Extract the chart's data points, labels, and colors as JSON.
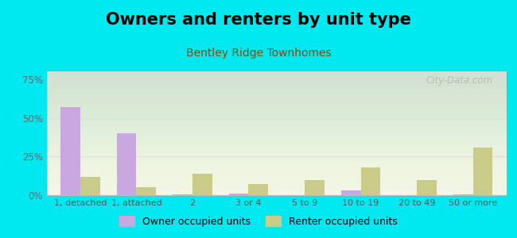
{
  "title": "Owners and renters by unit type",
  "subtitle": "Bentley Ridge Townhomes",
  "categories": [
    "1, detached",
    "1, attached",
    "2",
    "3 or 4",
    "5 to 9",
    "10 to 19",
    "20 to 49",
    "50 or more"
  ],
  "owner_values": [
    57,
    40,
    0.5,
    1,
    0,
    3,
    0,
    0.5
  ],
  "renter_values": [
    12,
    5,
    14,
    7,
    10,
    18,
    10,
    31
  ],
  "owner_color": "#c9a8e0",
  "renter_color": "#c8cc88",
  "background_color": "#00e8f0",
  "ylim": [
    0,
    80
  ],
  "yticks": [
    0,
    25,
    50,
    75
  ],
  "ytick_labels": [
    "0%",
    "25%",
    "50%",
    "75%"
  ],
  "title_fontsize": 15,
  "subtitle_fontsize": 10,
  "subtitle_color": "#8B4513",
  "legend_labels": [
    "Owner occupied units",
    "Renter occupied units"
  ],
  "watermark": "City-Data.com",
  "bar_width": 0.35
}
